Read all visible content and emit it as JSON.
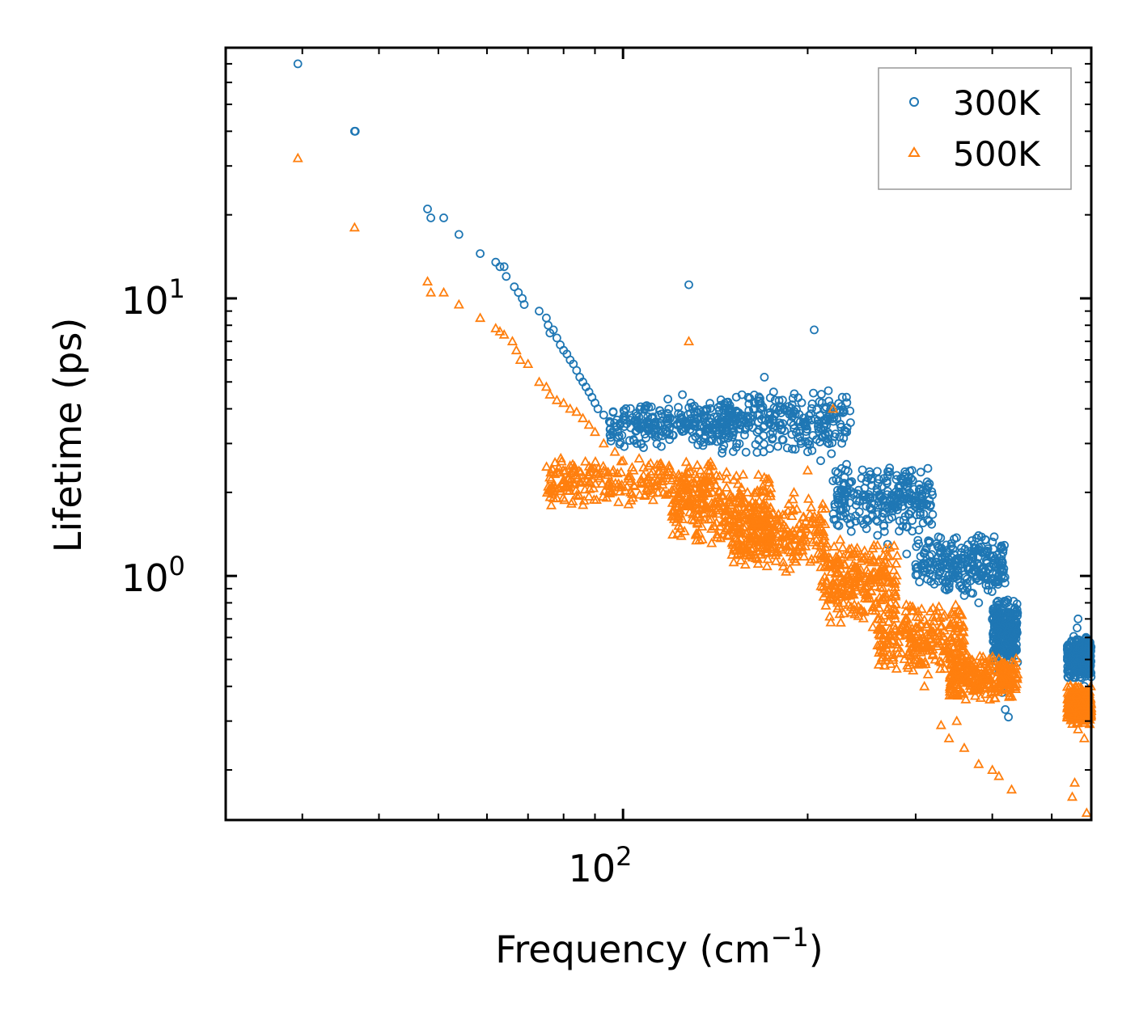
{
  "chart_data": {
    "type": "scatter",
    "title": "",
    "xlabel": "Frequency (cm",
    "xlabel_sup": "−1",
    "xlabel_close": ")",
    "ylabel": "Lifetime (ps)",
    "xscale": "log",
    "yscale": "log",
    "xlim": [
      22.5,
      580
    ],
    "ylim": [
      0.132,
      80
    ],
    "x_major_ticks": [
      {
        "value": 100,
        "base": "10",
        "exp": "2"
      }
    ],
    "y_major_ticks": [
      {
        "value": 1,
        "base": "10",
        "exp": "0"
      },
      {
        "value": 10,
        "base": "10",
        "exp": "1"
      }
    ],
    "legend": {
      "location": "top-right"
    },
    "series": [
      {
        "name": "300K",
        "marker": "circle",
        "color": "#1f77b4",
        "x": [
          29.5,
          36.5,
          36.6,
          48,
          48.6,
          51,
          54,
          58.5,
          62,
          63,
          64,
          64.5,
          66.5,
          67.5,
          68.5,
          69,
          73,
          75,
          75.5,
          76,
          77,
          78,
          79,
          80,
          81,
          82,
          83,
          84,
          85,
          86,
          87,
          88,
          89,
          90,
          91,
          93,
          95,
          98,
          104,
          108,
          128,
          110,
          116,
          125,
          129,
          132,
          136,
          140,
          145,
          150,
          160,
          170,
          176,
          178,
          182,
          190,
          195,
          200,
          205,
          210,
          220,
          230,
          240,
          250,
          260,
          270,
          282,
          290,
          300,
          320,
          340,
          360,
          380,
          400,
          430,
          410,
          415,
          420,
          425,
          545,
          548,
          550,
          552,
          555,
          560,
          565,
          570
        ],
        "y": [
          70,
          40,
          40,
          21,
          19.5,
          19.5,
          17,
          14.5,
          13.5,
          13,
          13,
          12,
          11,
          10.5,
          10,
          9.5,
          9,
          8.5,
          8,
          7.5,
          7.7,
          7.2,
          6.8,
          6.5,
          6.3,
          6,
          5.8,
          5.5,
          5.2,
          5,
          4.8,
          4.6,
          4.4,
          4.2,
          4,
          3.8,
          3.6,
          3.3,
          3.1,
          2.9,
          11.2,
          3.5,
          3.2,
          4.5,
          4.2,
          3.9,
          3.7,
          3.5,
          3.6,
          3.9,
          4.4,
          5.2,
          4.6,
          4,
          4.3,
          3.4,
          3.0,
          2.8,
          7.7,
          2.6,
          2.2,
          2.0,
          1.8,
          1.6,
          1.4,
          1.3,
          1.45,
          1.2,
          1.1,
          1.0,
          0.9,
          0.85,
          0.8,
          0.7,
          0.58,
          0.45,
          0.38,
          0.33,
          0.31,
          0.5,
          0.58,
          0.65,
          0.7,
          0.55,
          0.45,
          0.4,
          0.38
        ],
        "dense_bands": [
          {
            "x": [
              95,
              150
            ],
            "y": [
              2.6,
              4.8
            ]
          },
          {
            "x": [
              145,
              235
            ],
            "y": [
              2.4,
              5.4
            ]
          },
          {
            "x": [
              220,
              320
            ],
            "y": [
              1.25,
              2.9
            ]
          },
          {
            "x": [
              300,
              420
            ],
            "y": [
              0.75,
              1.6
            ]
          },
          {
            "x": [
              400,
              440
            ],
            "y": [
              0.42,
              0.95
            ]
          },
          {
            "x": [
              530,
              585
            ],
            "y": [
              0.38,
              0.68
            ]
          }
        ]
      },
      {
        "name": "500K",
        "marker": "triangle",
        "color": "#ff7f0e",
        "x": [
          29.5,
          36.5,
          48,
          48.6,
          51,
          54,
          58.5,
          62,
          63,
          64,
          66,
          67,
          68,
          70,
          73,
          75,
          76,
          78,
          80,
          82,
          84,
          86,
          88,
          90,
          93,
          97,
          100,
          104,
          108,
          118,
          128,
          135,
          140,
          150,
          160,
          170,
          180,
          190,
          200,
          210,
          220,
          226,
          236,
          240,
          250,
          255,
          260,
          275,
          280,
          300,
          310,
          330,
          340,
          350,
          360,
          380,
          400,
          410,
          430,
          540,
          545,
          552,
          560,
          565,
          570
        ],
        "y": [
          32,
          18,
          11.5,
          10.5,
          10.5,
          9.5,
          8.5,
          7.8,
          7.6,
          7.4,
          7,
          6.5,
          6,
          5.8,
          5,
          4.8,
          4.5,
          4.3,
          4.2,
          4.0,
          3.9,
          3.7,
          3.5,
          3.3,
          3.0,
          2.8,
          2.6,
          2.4,
          2.3,
          2.3,
          7.0,
          2.2,
          2.0,
          1.8,
          1.6,
          1.5,
          1.6,
          2.0,
          2.4,
          1.5,
          4.0,
          1.35,
          1.2,
          0.95,
          0.85,
          0.75,
          0.7,
          0.62,
          0.55,
          0.5,
          0.4,
          0.29,
          0.26,
          0.3,
          0.24,
          0.21,
          0.2,
          0.19,
          0.17,
          0.16,
          0.18,
          0.28,
          0.35,
          0.26,
          0.14
        ],
        "dense_bands": [
          {
            "x": [
              75,
              140
            ],
            "y": [
              1.55,
              3.0
            ]
          },
          {
            "x": [
              120,
              175
            ],
            "y": [
              1.1,
              2.8
            ]
          },
          {
            "x": [
              150,
              215
            ],
            "y": [
              0.9,
              2.2
            ]
          },
          {
            "x": [
              210,
              280
            ],
            "y": [
              0.55,
              1.6
            ]
          },
          {
            "x": [
              260,
              360
            ],
            "y": [
              0.38,
              0.95
            ]
          },
          {
            "x": [
              340,
              440
            ],
            "y": [
              0.32,
              0.58
            ]
          },
          {
            "x": [
              530,
              585
            ],
            "y": [
              0.26,
              0.45
            ]
          }
        ]
      }
    ]
  }
}
